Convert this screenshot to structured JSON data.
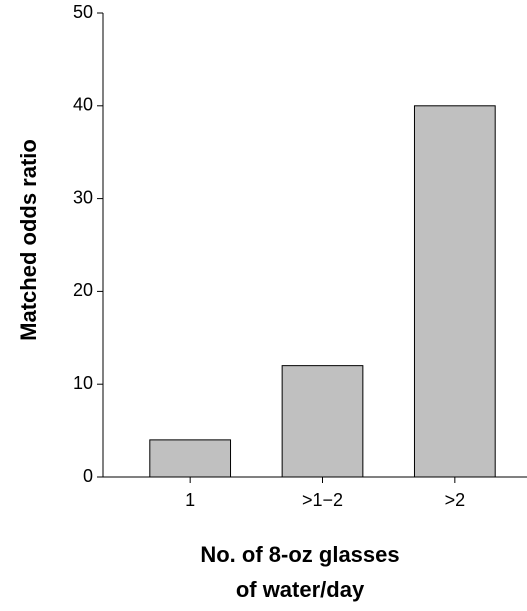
{
  "chart_data": {
    "type": "bar",
    "ylabel": "Matched odds ratio",
    "xlabel": [
      "No. of 8-oz glasses",
      "of water/day"
    ],
    "categories": [
      "1",
      ">1−2",
      ">2"
    ],
    "values": [
      4,
      12,
      40
    ],
    "color": "#c0c0c0",
    "ylim": [
      0,
      50
    ],
    "yticks": [
      0,
      10,
      20,
      30,
      40,
      50
    ],
    "grid": false
  }
}
